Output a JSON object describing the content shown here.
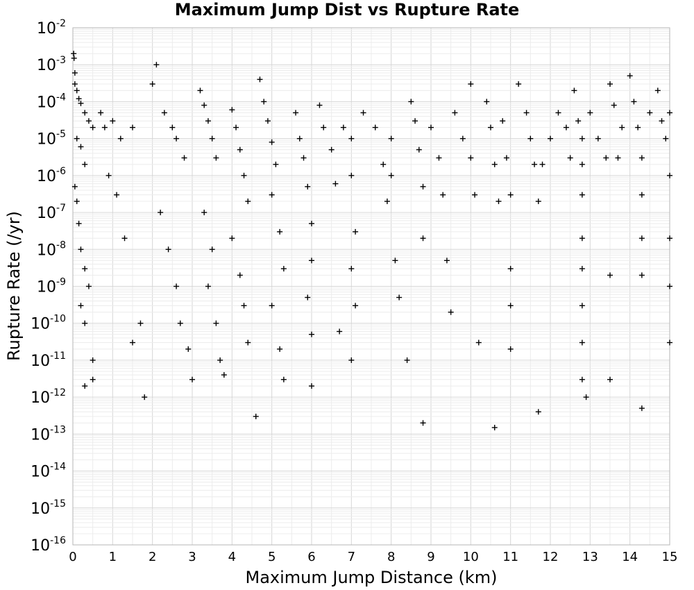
{
  "chart_data": {
    "type": "scatter",
    "title": "Maximum Jump Dist vs Rupture Rate",
    "xlabel": "Maximum Jump Distance (km)",
    "ylabel": "Rupture Rate (/yr)",
    "xlim": [
      0,
      15
    ],
    "ylim": [
      1e-16,
      0.01
    ],
    "yscale": "log",
    "grid": true,
    "legend": "none",
    "marker": "plus",
    "marker_color": "#000000",
    "x_ticks": [
      "0",
      "1",
      "2",
      "3",
      "4",
      "5",
      "6",
      "7",
      "8",
      "9",
      "10",
      "11",
      "12",
      "13",
      "14",
      "15"
    ],
    "y_ticks": [
      {
        "base": "10",
        "exp": "-2"
      },
      {
        "base": "10",
        "exp": "-3"
      },
      {
        "base": "10",
        "exp": "-4"
      },
      {
        "base": "10",
        "exp": "-5"
      },
      {
        "base": "10",
        "exp": "-6"
      },
      {
        "base": "10",
        "exp": "-7"
      },
      {
        "base": "10",
        "exp": "-8"
      },
      {
        "base": "10",
        "exp": "-9"
      },
      {
        "base": "10",
        "exp": "-10"
      },
      {
        "base": "10",
        "exp": "-11"
      },
      {
        "base": "10",
        "exp": "-12"
      },
      {
        "base": "10",
        "exp": "-13"
      },
      {
        "base": "10",
        "exp": "-14"
      },
      {
        "base": "10",
        "exp": "-15"
      },
      {
        "base": "10",
        "exp": "-16"
      }
    ],
    "series": [
      {
        "points": [
          [
            0.02,
            0.002
          ],
          [
            0.03,
            0.0015
          ],
          [
            0.05,
            0.0006
          ],
          [
            0.05,
            0.0003
          ],
          [
            0.1,
            0.0002
          ],
          [
            0.15,
            0.00012
          ],
          [
            0.2,
            9e-05
          ],
          [
            0.3,
            5e-05
          ],
          [
            0.4,
            3e-05
          ],
          [
            0.5,
            2e-05
          ],
          [
            0.1,
            1e-05
          ],
          [
            0.2,
            6e-06
          ],
          [
            0.3,
            2e-06
          ],
          [
            0.05,
            5e-07
          ],
          [
            0.1,
            2e-07
          ],
          [
            0.15,
            5e-08
          ],
          [
            0.2,
            1e-08
          ],
          [
            0.3,
            3e-09
          ],
          [
            0.4,
            1e-09
          ],
          [
            0.2,
            3e-10
          ],
          [
            0.3,
            1e-10
          ],
          [
            0.5,
            1e-11
          ],
          [
            0.3,
            2e-12
          ],
          [
            0.5,
            3e-12
          ],
          [
            0.7,
            5e-05
          ],
          [
            0.8,
            2e-05
          ],
          [
            1.0,
            3e-05
          ],
          [
            1.2,
            1e-05
          ],
          [
            1.5,
            2e-05
          ],
          [
            0.9,
            1e-06
          ],
          [
            1.1,
            3e-07
          ],
          [
            1.3,
            2e-08
          ],
          [
            1.5,
            3e-11
          ],
          [
            1.7,
            1e-10
          ],
          [
            1.8,
            1e-12
          ],
          [
            2.0,
            0.0003
          ],
          [
            2.1,
            0.001
          ],
          [
            2.3,
            5e-05
          ],
          [
            2.5,
            2e-05
          ],
          [
            2.6,
            1e-05
          ],
          [
            2.8,
            3e-06
          ],
          [
            2.2,
            1e-07
          ],
          [
            2.4,
            1e-08
          ],
          [
            2.6,
            1e-09
          ],
          [
            2.7,
            1e-10
          ],
          [
            2.9,
            2e-11
          ],
          [
            3.0,
            3e-12
          ],
          [
            3.2,
            0.0002
          ],
          [
            3.3,
            8e-05
          ],
          [
            3.4,
            3e-05
          ],
          [
            3.5,
            1e-05
          ],
          [
            3.6,
            3e-06
          ],
          [
            3.3,
            1e-07
          ],
          [
            3.5,
            1e-08
          ],
          [
            3.4,
            1e-09
          ],
          [
            3.6,
            1e-10
          ],
          [
            3.7,
            1e-11
          ],
          [
            3.8,
            4e-12
          ],
          [
            4.0,
            6e-05
          ],
          [
            4.1,
            2e-05
          ],
          [
            4.2,
            5e-06
          ],
          [
            4.3,
            1e-06
          ],
          [
            4.4,
            2e-07
          ],
          [
            4.0,
            2e-08
          ],
          [
            4.2,
            2e-09
          ],
          [
            4.3,
            3e-10
          ],
          [
            4.4,
            3e-11
          ],
          [
            4.6,
            3e-13
          ],
          [
            4.7,
            0.0004
          ],
          [
            4.8,
            0.0001
          ],
          [
            4.9,
            3e-05
          ],
          [
            5.0,
            8e-06
          ],
          [
            5.1,
            2e-06
          ],
          [
            5.0,
            3e-07
          ],
          [
            5.2,
            3e-08
          ],
          [
            5.3,
            3e-09
          ],
          [
            5.0,
            3e-10
          ],
          [
            5.2,
            2e-11
          ],
          [
            5.3,
            3e-12
          ],
          [
            5.6,
            5e-05
          ],
          [
            5.7,
            1e-05
          ],
          [
            5.8,
            3e-06
          ],
          [
            5.9,
            5e-07
          ],
          [
            6.0,
            5e-08
          ],
          [
            6.0,
            5e-09
          ],
          [
            5.9,
            5e-10
          ],
          [
            6.0,
            5e-11
          ],
          [
            6.0,
            2e-12
          ],
          [
            6.2,
            8e-05
          ],
          [
            6.3,
            2e-05
          ],
          [
            6.5,
            5e-06
          ],
          [
            6.6,
            6e-07
          ],
          [
            6.8,
            2e-05
          ],
          [
            6.7,
            6e-11
          ],
          [
            7.0,
            1e-05
          ],
          [
            7.0,
            1e-06
          ],
          [
            7.1,
            3e-08
          ],
          [
            7.0,
            3e-09
          ],
          [
            7.1,
            3e-10
          ],
          [
            7.0,
            1e-11
          ],
          [
            7.3,
            5e-05
          ],
          [
            7.6,
            2e-05
          ],
          [
            7.8,
            2e-06
          ],
          [
            7.9,
            2e-07
          ],
          [
            8.0,
            1e-05
          ],
          [
            8.0,
            1e-06
          ],
          [
            8.1,
            5e-09
          ],
          [
            8.2,
            5e-10
          ],
          [
            8.4,
            1e-11
          ],
          [
            8.5,
            0.0001
          ],
          [
            8.6,
            3e-05
          ],
          [
            8.7,
            5e-06
          ],
          [
            8.8,
            5e-07
          ],
          [
            8.8,
            2e-08
          ],
          [
            8.8,
            2e-13
          ],
          [
            9.0,
            2e-05
          ],
          [
            9.2,
            3e-06
          ],
          [
            9.3,
            3e-07
          ],
          [
            9.4,
            5e-09
          ],
          [
            9.5,
            2e-10
          ],
          [
            9.6,
            5e-05
          ],
          [
            9.8,
            1e-05
          ],
          [
            10.0,
            0.0003
          ],
          [
            10.0,
            3e-06
          ],
          [
            10.1,
            3e-07
          ],
          [
            10.2,
            3e-11
          ],
          [
            10.4,
            0.0001
          ],
          [
            10.5,
            2e-05
          ],
          [
            10.6,
            2e-06
          ],
          [
            10.6,
            1.5e-13
          ],
          [
            10.7,
            2e-07
          ],
          [
            10.8,
            3e-05
          ],
          [
            10.9,
            3e-06
          ],
          [
            11.0,
            3e-07
          ],
          [
            11.0,
            3e-09
          ],
          [
            11.0,
            3e-10
          ],
          [
            11.0,
            2e-11
          ],
          [
            11.2,
            0.0003
          ],
          [
            11.4,
            5e-05
          ],
          [
            11.5,
            1e-05
          ],
          [
            11.6,
            2e-06
          ],
          [
            11.7,
            2e-07
          ],
          [
            11.7,
            4e-13
          ],
          [
            11.8,
            2e-06
          ],
          [
            12.0,
            1e-05
          ],
          [
            12.2,
            5e-05
          ],
          [
            12.4,
            2e-05
          ],
          [
            12.5,
            3e-06
          ],
          [
            12.6,
            0.0002
          ],
          [
            12.7,
            3e-05
          ],
          [
            12.8,
            1e-05
          ],
          [
            12.8,
            2e-06
          ],
          [
            12.8,
            3e-07
          ],
          [
            12.8,
            2e-08
          ],
          [
            12.8,
            3e-09
          ],
          [
            12.8,
            3e-10
          ],
          [
            12.8,
            3e-11
          ],
          [
            12.8,
            3e-12
          ],
          [
            12.9,
            1e-12
          ],
          [
            13.0,
            5e-05
          ],
          [
            13.2,
            1e-05
          ],
          [
            13.4,
            3e-06
          ],
          [
            13.5,
            0.0003
          ],
          [
            13.6,
            8e-05
          ],
          [
            13.5,
            2e-09
          ],
          [
            13.5,
            3e-12
          ],
          [
            13.7,
            3e-06
          ],
          [
            13.8,
            2e-05
          ],
          [
            14.0,
            0.0005
          ],
          [
            14.1,
            0.0001
          ],
          [
            14.2,
            2e-05
          ],
          [
            14.3,
            3e-06
          ],
          [
            14.3,
            3e-07
          ],
          [
            14.3,
            2e-08
          ],
          [
            14.3,
            2e-09
          ],
          [
            14.3,
            5e-13
          ],
          [
            14.5,
            5e-05
          ],
          [
            14.7,
            0.0002
          ],
          [
            14.8,
            3e-05
          ],
          [
            14.9,
            1e-05
          ],
          [
            15.0,
            5e-05
          ],
          [
            15.0,
            1e-06
          ],
          [
            15.0,
            2e-08
          ],
          [
            15.0,
            1e-09
          ],
          [
            15.0,
            3e-11
          ]
        ]
      }
    ]
  }
}
